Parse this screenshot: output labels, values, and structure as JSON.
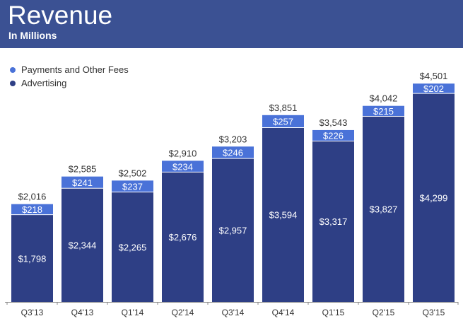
{
  "header": {
    "title": "Revenue",
    "subtitle": "In Millions"
  },
  "colors": {
    "header_bg": "#3b5193",
    "advertising": "#2e3f85",
    "payments": "#4a72d8",
    "axis": "#8a8a8a",
    "label_dark": "#333333",
    "label_light": "#ffffff"
  },
  "chart_data": {
    "type": "bar",
    "stacked": true,
    "title": "Revenue",
    "subtitle": "In Millions",
    "xlabel": "",
    "ylabel": "",
    "grid": false,
    "legend_position": "top-left",
    "ylim": [
      0,
      4650
    ],
    "categories": [
      "Q3'13",
      "Q4'13",
      "Q1'14",
      "Q2'14",
      "Q3'14",
      "Q4'14",
      "Q1'15",
      "Q2'15",
      "Q3'15"
    ],
    "series": [
      {
        "name": "Advertising",
        "color": "#2e3f85",
        "values": [
          1798,
          2344,
          2265,
          2676,
          2957,
          3594,
          3317,
          3827,
          4299
        ],
        "labels": [
          "$1,798",
          "$2,344",
          "$2,265",
          "$2,676",
          "$2,957",
          "$3,594",
          "$3,317",
          "$3,827",
          "$4,299"
        ]
      },
      {
        "name": "Payments and Other Fees",
        "color": "#4a72d8",
        "values": [
          218,
          241,
          237,
          234,
          246,
          257,
          226,
          215,
          202
        ],
        "labels": [
          "$218",
          "$241",
          "$237",
          "$234",
          "$246",
          "$257",
          "$226",
          "$215",
          "$202"
        ]
      }
    ],
    "totals": [
      2016,
      2585,
      2502,
      2910,
      3203,
      3851,
      3543,
      4042,
      4501
    ],
    "total_labels": [
      "$2,016",
      "$2,585",
      "$2,502",
      "$2,910",
      "$3,203",
      "$3,851",
      "$3,543",
      "$4,042",
      "$4,501"
    ]
  }
}
